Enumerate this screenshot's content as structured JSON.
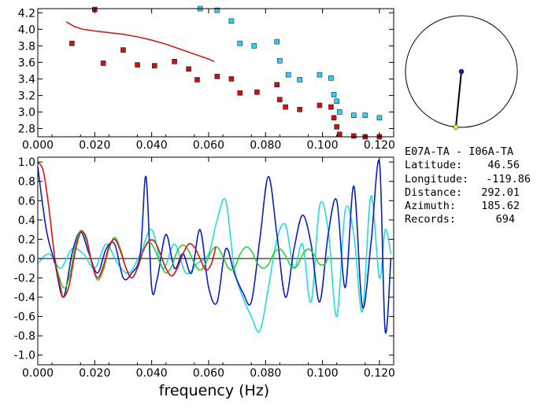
{
  "colors": {
    "dispersion_fill": "#cc1111",
    "dispersion_edge": "#33ccff",
    "data_blue": "#0a1fc4",
    "data_cyan": "#22dddd",
    "model_red": "#dd1111",
    "model_green": "#33cc33",
    "map_station_a": "#1a1a99",
    "map_station_b": "#ffee22"
  },
  "station_info": {
    "pair": "E07A-TA - I06A-TA",
    "latitude_label": "Latitude:",
    "latitude_value": "46.56",
    "longitude_label": "Longitude:",
    "longitude_value": "-119.86",
    "distance_label": "Distance:",
    "distance_value": "292.01",
    "azimuth_label": "Azimuth:",
    "azimuth_value": "185.62",
    "records_label": "Records:",
    "records_value": "694"
  },
  "map": {
    "azimuth_deg": 185.62
  },
  "chart_data": [
    {
      "type": "scatter",
      "title": "",
      "xlabel": "",
      "ylabel": "",
      "xlim": [
        0.0,
        0.125
      ],
      "ylim": [
        2.7,
        4.25
      ],
      "x_ticks": [
        "0.000",
        "0.020",
        "0.040",
        "0.060",
        "0.080",
        "0.100",
        "0.120"
      ],
      "y_ticks": [
        "2.8",
        "3.0",
        "3.2",
        "3.4",
        "3.6",
        "3.8",
        "4.0",
        "4.2"
      ],
      "grid": false,
      "series": [
        {
          "marker": "red-square",
          "points": [
            [
              0.012,
              3.83
            ],
            [
              0.02,
              4.24
            ],
            [
              0.023,
              3.59
            ],
            [
              0.03,
              3.75
            ],
            [
              0.035,
              3.57
            ],
            [
              0.041,
              3.56
            ],
            [
              0.048,
              3.61
            ],
            [
              0.053,
              3.52
            ],
            [
              0.056,
              3.39
            ],
            [
              0.063,
              3.43
            ],
            [
              0.068,
              3.4
            ],
            [
              0.071,
              3.23
            ],
            [
              0.077,
              3.24
            ],
            [
              0.084,
              3.33
            ],
            [
              0.085,
              3.15
            ],
            [
              0.087,
              3.06
            ],
            [
              0.092,
              3.03
            ],
            [
              0.099,
              3.08
            ],
            [
              0.103,
              3.06
            ],
            [
              0.104,
              2.93
            ],
            [
              0.105,
              2.82
            ],
            [
              0.106,
              2.73
            ],
            [
              0.111,
              2.71
            ],
            [
              0.115,
              2.7
            ],
            [
              0.12,
              2.7
            ]
          ]
        },
        {
          "marker": "cyan-square",
          "points": [
            [
              0.057,
              4.25
            ],
            [
              0.063,
              4.23
            ],
            [
              0.068,
              4.1
            ],
            [
              0.071,
              3.83
            ],
            [
              0.076,
              3.8
            ],
            [
              0.084,
              3.85
            ],
            [
              0.085,
              3.62
            ],
            [
              0.088,
              3.45
            ],
            [
              0.092,
              3.39
            ],
            [
              0.099,
              3.45
            ],
            [
              0.103,
              3.41
            ],
            [
              0.104,
              3.21
            ],
            [
              0.105,
              3.13
            ],
            [
              0.106,
              3.0
            ],
            [
              0.111,
              2.96
            ],
            [
              0.115,
              2.96
            ],
            [
              0.12,
              2.93
            ]
          ]
        },
        {
          "marker": "red-line",
          "points": [
            [
              0.01,
              4.09
            ],
            [
              0.013,
              4.03
            ],
            [
              0.016,
              4.0
            ],
            [
              0.02,
              3.98
            ],
            [
              0.025,
              3.96
            ],
            [
              0.03,
              3.94
            ],
            [
              0.035,
              3.91
            ],
            [
              0.04,
              3.87
            ],
            [
              0.045,
              3.82
            ],
            [
              0.05,
              3.76
            ],
            [
              0.055,
              3.7
            ],
            [
              0.06,
              3.64
            ],
            [
              0.062,
              3.61
            ]
          ]
        }
      ]
    },
    {
      "type": "line",
      "title": "",
      "xlabel": "frequency (Hz)",
      "ylabel": "",
      "xlim": [
        0.0,
        0.125
      ],
      "ylim": [
        -1.1,
        1.05
      ],
      "x_ticks": [
        "0.000",
        "0.020",
        "0.040",
        "0.060",
        "0.080",
        "0.100",
        "0.120"
      ],
      "y_ticks": [
        "1.0",
        "0.8",
        "0.6",
        "0.4",
        "0.2",
        "0.0",
        "-0.2",
        "-0.4",
        "-0.6",
        "-0.8",
        "-1.0"
      ],
      "grid": false,
      "zero_line": true,
      "series": [
        {
          "color": "blue",
          "x": [
            0.0,
            0.003,
            0.006,
            0.009,
            0.012,
            0.015,
            0.018,
            0.021,
            0.024,
            0.027,
            0.03,
            0.033,
            0.036,
            0.038,
            0.04,
            0.042,
            0.045,
            0.048,
            0.051,
            0.054,
            0.057,
            0.06,
            0.063,
            0.066,
            0.069,
            0.072,
            0.075,
            0.078,
            0.081,
            0.084,
            0.087,
            0.09,
            0.093,
            0.096,
            0.099,
            0.102,
            0.105,
            0.108,
            0.111,
            0.114,
            0.117,
            0.12,
            0.122,
            0.124
          ],
          "y": [
            0.95,
            0.3,
            -0.05,
            -0.4,
            0.05,
            0.28,
            0.05,
            -0.15,
            0.1,
            0.15,
            -0.2,
            -0.15,
            0.05,
            0.85,
            -0.3,
            -0.2,
            0.25,
            -0.1,
            0.05,
            -0.15,
            0.3,
            -0.3,
            -0.45,
            0.1,
            -0.15,
            -0.35,
            -0.45,
            0.2,
            0.85,
            0.25,
            -0.4,
            0.1,
            0.45,
            0.15,
            -0.45,
            0.25,
            0.6,
            -0.3,
            0.75,
            -0.5,
            0.15,
            1.0,
            -0.75,
            0.0
          ]
        },
        {
          "color": "cyan",
          "x": [
            0.0,
            0.004,
            0.008,
            0.012,
            0.016,
            0.02,
            0.024,
            0.028,
            0.032,
            0.036,
            0.04,
            0.044,
            0.048,
            0.052,
            0.056,
            0.06,
            0.063,
            0.066,
            0.069,
            0.072,
            0.075,
            0.078,
            0.081,
            0.084,
            0.087,
            0.09,
            0.093,
            0.096,
            0.099,
            0.102,
            0.105,
            0.108,
            0.111,
            0.114,
            0.117,
            0.12,
            0.122,
            0.124
          ],
          "y": [
            -0.05,
            0.05,
            -0.1,
            0.1,
            0.05,
            -0.1,
            0.15,
            -0.05,
            -0.15,
            0.05,
            0.3,
            -0.1,
            0.15,
            -0.15,
            -0.05,
            0.05,
            0.4,
            0.6,
            -0.1,
            -0.4,
            -0.6,
            -0.75,
            -0.3,
            0.2,
            0.35,
            -0.1,
            0.15,
            -0.45,
            0.55,
            0.3,
            -0.6,
            0.5,
            0.25,
            -0.55,
            0.65,
            -0.2,
            0.3,
            0.05
          ]
        },
        {
          "color": "red",
          "x": [
            0.0,
            0.002,
            0.004,
            0.006,
            0.008,
            0.009,
            0.011,
            0.013,
            0.015,
            0.017,
            0.019,
            0.021,
            0.023,
            0.025,
            0.027,
            0.029,
            0.031,
            0.033,
            0.035,
            0.037,
            0.039,
            0.041,
            0.043,
            0.045,
            0.047,
            0.049,
            0.051,
            0.053,
            0.055,
            0.057,
            0.059,
            0.061,
            0.0625
          ],
          "y": [
            1.0,
            0.9,
            0.5,
            0.0,
            -0.3,
            -0.4,
            -0.28,
            0.05,
            0.27,
            0.22,
            -0.05,
            -0.2,
            -0.08,
            0.12,
            0.2,
            0.08,
            -0.1,
            -0.2,
            -0.1,
            0.08,
            0.18,
            0.18,
            0.05,
            -0.1,
            -0.18,
            -0.1,
            0.05,
            0.15,
            0.12,
            0.0,
            -0.12,
            -0.05,
            0.12
          ]
        },
        {
          "color": "green",
          "x": [
            0.006,
            0.009,
            0.011,
            0.013,
            0.015,
            0.017,
            0.019,
            0.021,
            0.023,
            0.025,
            0.027,
            0.029,
            0.031,
            0.033,
            0.035,
            0.037,
            0.039,
            0.041,
            0.043,
            0.045,
            0.047,
            0.049,
            0.051,
            0.053,
            0.055,
            0.057,
            0.059,
            0.061,
            0.063,
            0.065,
            0.067,
            0.069,
            0.071,
            0.073,
            0.075,
            0.077,
            0.079,
            0.081,
            0.083,
            0.085,
            0.087,
            0.089,
            0.091,
            0.093,
            0.095,
            0.097,
            0.099,
            0.101,
            0.102
          ],
          "y": [
            -0.05,
            -0.3,
            -0.2,
            0.1,
            0.29,
            0.2,
            -0.05,
            -0.22,
            -0.12,
            0.1,
            0.22,
            0.1,
            -0.1,
            -0.2,
            -0.1,
            0.08,
            0.17,
            0.1,
            -0.05,
            -0.15,
            -0.08,
            0.08,
            0.14,
            0.08,
            -0.05,
            -0.12,
            -0.05,
            0.08,
            0.12,
            0.02,
            -0.1,
            -0.1,
            0.04,
            0.12,
            0.08,
            -0.04,
            -0.1,
            -0.06,
            0.06,
            0.1,
            0.03,
            -0.08,
            -0.08,
            0.04,
            0.1,
            0.04,
            -0.06,
            -0.05,
            0.02
          ]
        }
      ]
    }
  ]
}
